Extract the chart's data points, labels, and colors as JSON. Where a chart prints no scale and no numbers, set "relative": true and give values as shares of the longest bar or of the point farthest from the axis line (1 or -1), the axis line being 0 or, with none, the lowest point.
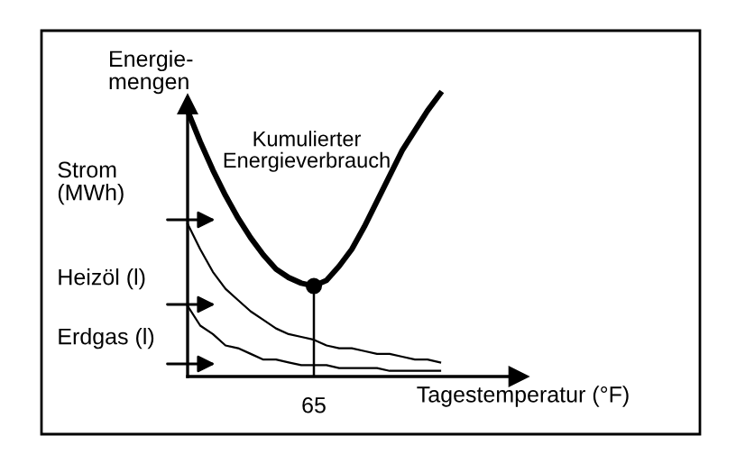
{
  "chart_data": {
    "type": "line",
    "relative": true,
    "xlabel": "Tagestemperatur (°F)",
    "ylabel": "Energie-\nmengen",
    "categories": [
      null,
      null,
      null,
      null,
      null,
      null,
      null,
      null,
      null,
      null,
      null,
      null,
      null,
      null,
      null,
      null,
      null,
      null,
      null,
      null,
      null
    ],
    "series": [
      {
        "color": "#000000",
        "values": [
          0.94,
          0.83,
          0.73,
          0.64,
          0.56,
          0.49,
          0.43,
          0.38,
          0.35,
          0.33,
          0.32,
          0.34,
          0.39,
          0.45,
          0.53,
          0.62,
          0.71,
          0.8,
          0.87,
          0.94,
          1
        ]
      },
      {
        "color": "#000000",
        "values": [
          0.54,
          0.45,
          0.37,
          0.31,
          0.27,
          0.23,
          0.2,
          0.17,
          0.15,
          0.14,
          0.13,
          0.11,
          0.1,
          0.1,
          0.09,
          0.08,
          0.08,
          0.07,
          0.06,
          0.06,
          0.05
        ]
      },
      {
        "color": "#000000",
        "values": [
          0.25,
          0.18,
          0.15,
          0.11,
          0.1,
          0.08,
          0.06,
          0.06,
          0.05,
          0.04,
          0.04,
          0.04,
          0.03,
          0.03,
          0.03,
          0.03,
          0.02,
          0.02,
          0.02,
          0.02,
          0.02
        ]
      }
    ],
    "annotations": [
      "Kumulierter\nEnergieverbrauch",
      "65",
      "Strom\n(MWh)",
      "Heizöl (l)",
      "Erdgas (l)"
    ],
    "grid": false,
    "legend": false
  }
}
